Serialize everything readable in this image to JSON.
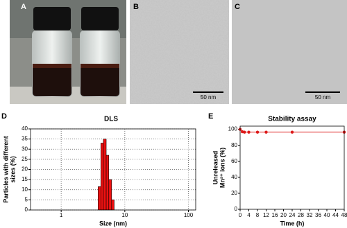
{
  "panel_labels": [
    "A",
    "B",
    "C",
    "D",
    "E"
  ],
  "scale_bars": [
    "50 nm",
    "50 nm"
  ],
  "chart_data": [
    {
      "type": "histogram",
      "title": "DLS",
      "xlabel": "Size (nm)",
      "ylabel": [
        "Particles with different",
        "sizes (%)"
      ],
      "bins": [
        3.8,
        4.2,
        4.6,
        5.1,
        5.6,
        6.2,
        6.8
      ],
      "counts": [
        11.5,
        33,
        35,
        27,
        15,
        5
      ],
      "color": "#ee1111",
      "xscale": "log",
      "xlim": [
        0.33,
        130
      ],
      "xticks": [
        1,
        10,
        100
      ],
      "ylim": [
        0,
        40
      ],
      "yticks": [
        0,
        5,
        10,
        15,
        20,
        25,
        30,
        35,
        40
      ],
      "grid": true
    },
    {
      "type": "line",
      "title": "Stability assay",
      "xlabel": "Time (h)",
      "ylabel": [
        "Unreleased",
        "Mn²⁺ ions (%)"
      ],
      "x": [
        0,
        1,
        2,
        4,
        8,
        12,
        24,
        48
      ],
      "values": [
        100,
        97,
        96.5,
        96.5,
        96.5,
        96.5,
        96.5,
        96.5
      ],
      "color": "#dd1a1a",
      "xlim": [
        0,
        48
      ],
      "xticks": [
        0,
        4,
        8,
        12,
        16,
        20,
        24,
        28,
        32,
        36,
        40,
        44,
        48
      ],
      "ylim": [
        0,
        104
      ],
      "yticks": [
        0,
        20,
        40,
        60,
        80,
        100
      ],
      "grid": false
    }
  ]
}
